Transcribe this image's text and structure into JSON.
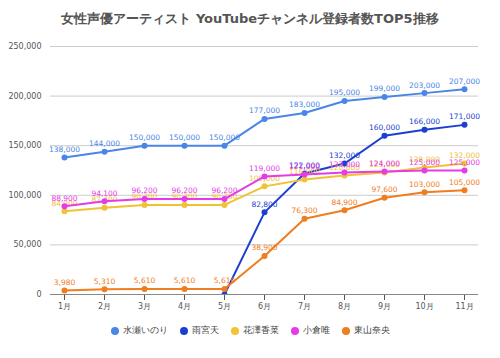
{
  "chart_data": {
    "type": "line",
    "title": "女性声優アーティスト YouTubeチャンネル登録者数TOP5推移",
    "categories": [
      "1月",
      "2月",
      "3月",
      "4月",
      "5月",
      "6月",
      "7月",
      "8月",
      "9月",
      "10月",
      "11月"
    ],
    "ylim": [
      0,
      250000
    ],
    "yticks": [
      0,
      {
        "value": 50000,
        "label": "50,000"
      },
      {
        "value": 100000,
        "label": "100,000"
      },
      {
        "value": 150000,
        "label": "150,000"
      },
      {
        "value": 200000,
        "label": "200,000"
      },
      {
        "value": 250000,
        "label": "250,000"
      }
    ],
    "grid": true,
    "legend": "bottom",
    "data_labels": true,
    "marker": "circle",
    "series": [
      {
        "name": "水瀬いのり",
        "color": "#4a86e8",
        "values": [
          138000,
          144000,
          150000,
          150000,
          150000,
          177000,
          183000,
          195000,
          199000,
          203000,
          207000
        ],
        "value_labels": [
          "138,000",
          "144,000",
          "150,000",
          "150,000",
          "150,000",
          "177,000",
          "183,000",
          "195,000",
          "199,000",
          "203,000",
          "207,000"
        ]
      },
      {
        "name": "雨宮天",
        "color": "#1c3fd1",
        "values": [
          null,
          null,
          null,
          null,
          0,
          82800,
          122000,
          132000,
          160000,
          166000,
          171000
        ],
        "value_labels": [
          null,
          null,
          null,
          null,
          null,
          "82,800",
          "122,000",
          "132,000",
          "160,000",
          "166,000",
          "171,000"
        ]
      },
      {
        "name": "花澤香菜",
        "color": "#f1c232",
        "values": [
          84000,
          87400,
          90300,
          90300,
          90300,
          109000,
          116000,
          120000,
          123000,
          128000,
          132000
        ],
        "value_labels": [
          "84,000",
          "87,400",
          "90,300",
          "90,300",
          "90,300",
          "109,000",
          "116,000",
          "120,000",
          "123,000",
          "128,000",
          "132,000"
        ]
      },
      {
        "name": "小倉唯",
        "color": "#e53be8",
        "values": [
          88900,
          94100,
          96200,
          96200,
          96200,
          119000,
          121000,
          123000,
          124000,
          125000,
          125000
        ],
        "value_labels": [
          "88,900",
          "94,100",
          "96,200",
          "96,200",
          "96,200",
          "119,000",
          "121,000",
          "123,000",
          "124,000",
          "125,000",
          "125,000"
        ]
      },
      {
        "name": "東山奈央",
        "color": "#f07d1e",
        "values": [
          3980,
          5310,
          5610,
          5610,
          5610,
          38900,
          76300,
          84900,
          97600,
          103000,
          105000
        ],
        "value_labels": [
          "3,980",
          "5,310",
          "5,610",
          "5,610",
          "5,610",
          "38,900",
          "76,300",
          "84,900",
          "97,600",
          "103,000",
          "105,000"
        ]
      }
    ]
  }
}
